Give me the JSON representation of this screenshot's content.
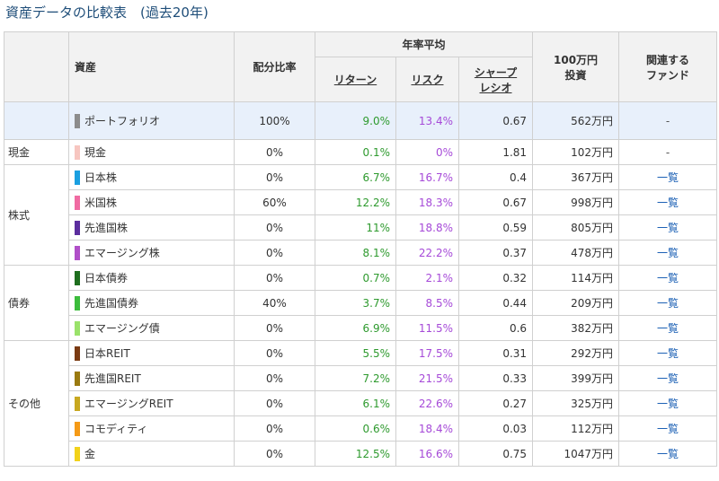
{
  "title": "資産データの比較表　(過去20年)",
  "headers": {
    "asset": "資産",
    "ratio": "配分比率",
    "annual": "年率平均",
    "return": "リターン",
    "risk": "リスク",
    "sharpe_l1": "シャープ",
    "sharpe_l2": "レシオ",
    "invest_l1": "100万円",
    "invest_l2": "投資",
    "fund_l1": "関連する",
    "fund_l2": "ファンド"
  },
  "portfolio": {
    "asset": "ポートフォリオ",
    "color": "#8c8c8c",
    "ratio": "100%",
    "ret": "9.0%",
    "risk": "13.4%",
    "sharpe": "0.67",
    "invest": "562万円",
    "fund": "-"
  },
  "categories": {
    "cash": "現金",
    "stocks": "株式",
    "bonds": "債券",
    "other": "その他"
  },
  "rows": [
    {
      "asset": "現金",
      "color": "#f7c6c0",
      "ratio": "0%",
      "ret": "0.1%",
      "risk": "0%",
      "sharpe": "1.81",
      "invest": "102万円",
      "fund": "-"
    },
    {
      "asset": "日本株",
      "color": "#1a9fe0",
      "ratio": "0%",
      "ret": "6.7%",
      "risk": "16.7%",
      "sharpe": "0.4",
      "invest": "367万円",
      "fund": "一覧"
    },
    {
      "asset": "米国株",
      "color": "#f06ba2",
      "ratio": "60%",
      "ret": "12.2%",
      "risk": "18.3%",
      "sharpe": "0.67",
      "invest": "998万円",
      "fund": "一覧"
    },
    {
      "asset": "先進国株",
      "color": "#5b2d9e",
      "ratio": "0%",
      "ret": "11%",
      "risk": "18.8%",
      "sharpe": "0.59",
      "invest": "805万円",
      "fund": "一覧"
    },
    {
      "asset": "エマージング株",
      "color": "#b04fc8",
      "ratio": "0%",
      "ret": "8.1%",
      "risk": "22.2%",
      "sharpe": "0.37",
      "invest": "478万円",
      "fund": "一覧"
    },
    {
      "asset": "日本債券",
      "color": "#1e6e1e",
      "ratio": "0%",
      "ret": "0.7%",
      "risk": "2.1%",
      "sharpe": "0.32",
      "invest": "114万円",
      "fund": "一覧"
    },
    {
      "asset": "先進国債券",
      "color": "#3cbc3c",
      "ratio": "40%",
      "ret": "3.7%",
      "risk": "8.5%",
      "sharpe": "0.44",
      "invest": "209万円",
      "fund": "一覧"
    },
    {
      "asset": "エマージング債",
      "color": "#9ae26a",
      "ratio": "0%",
      "ret": "6.9%",
      "risk": "11.5%",
      "sharpe": "0.6",
      "invest": "382万円",
      "fund": "一覧"
    },
    {
      "asset": "日本REIT",
      "color": "#7a3a12",
      "ratio": "0%",
      "ret": "5.5%",
      "risk": "17.5%",
      "sharpe": "0.31",
      "invest": "292万円",
      "fund": "一覧"
    },
    {
      "asset": "先進国REIT",
      "color": "#9a7a10",
      "ratio": "0%",
      "ret": "7.2%",
      "risk": "21.5%",
      "sharpe": "0.33",
      "invest": "399万円",
      "fund": "一覧"
    },
    {
      "asset": "エマージングREIT",
      "color": "#c8a820",
      "ratio": "0%",
      "ret": "6.1%",
      "risk": "22.6%",
      "sharpe": "0.27",
      "invest": "325万円",
      "fund": "一覧"
    },
    {
      "asset": "コモディティ",
      "color": "#f59a16",
      "ratio": "0%",
      "ret": "0.6%",
      "risk": "18.4%",
      "sharpe": "0.03",
      "invest": "112万円",
      "fund": "一覧"
    },
    {
      "asset": "金",
      "color": "#f2d21a",
      "ratio": "0%",
      "ret": "12.5%",
      "risk": "16.6%",
      "sharpe": "0.75",
      "invest": "1047万円",
      "fund": "一覧"
    }
  ]
}
